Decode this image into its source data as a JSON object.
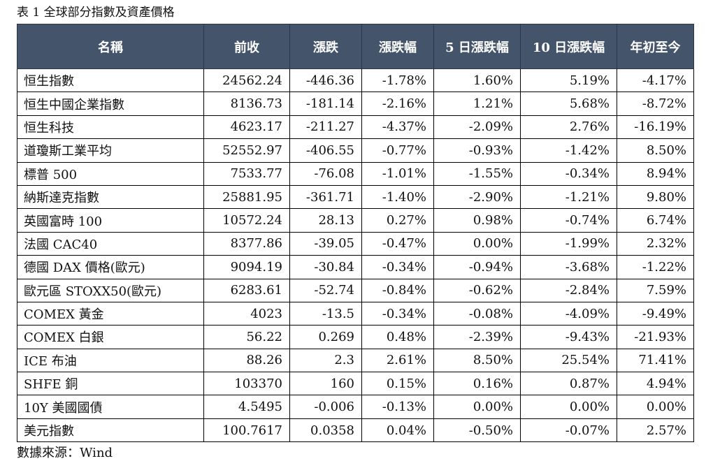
{
  "caption": "表 1 全球部分指數及資產價格",
  "source": "數據來源：Wind",
  "table": {
    "headers": [
      "名稱",
      "前收",
      "漲跌",
      "漲跌幅",
      "5 日漲跌幅",
      "10 日漲跌幅",
      "年初至今"
    ],
    "rows": [
      [
        "恒生指數",
        "24562.24",
        "-446.36",
        "-1.78%",
        "1.60%",
        "5.19%",
        "-4.17%"
      ],
      [
        "恒生中國企業指數",
        "8136.73",
        "-181.14",
        "-2.16%",
        "1.21%",
        "5.68%",
        "-8.72%"
      ],
      [
        "恒生科技",
        "4623.17",
        "-211.27",
        "-4.37%",
        "-2.09%",
        "2.76%",
        "-16.19%"
      ],
      [
        "道瓊斯工業平均",
        "52552.97",
        "-406.55",
        "-0.77%",
        "-0.93%",
        "-1.42%",
        "8.50%"
      ],
      [
        "標普 500",
        "7533.77",
        "-76.08",
        "-1.01%",
        "-1.55%",
        "-0.34%",
        "8.94%"
      ],
      [
        "納斯達克指數",
        "25881.95",
        "-361.71",
        "-1.40%",
        "-2.90%",
        "-1.21%",
        "9.80%"
      ],
      [
        "英國富時 100",
        "10572.24",
        "28.13",
        "0.27%",
        "0.98%",
        "-0.74%",
        "6.74%"
      ],
      [
        "法國 CAC40",
        "8377.86",
        "-39.05",
        "-0.47%",
        "0.00%",
        "-1.99%",
        "2.32%"
      ],
      [
        "德國 DAX 價格(歐元)",
        "9094.19",
        "-30.84",
        "-0.34%",
        "-0.94%",
        "-3.68%",
        "-1.22%"
      ],
      [
        "歐元區 STOXX50(歐元)",
        "6283.61",
        "-52.74",
        "-0.84%",
        "-0.62%",
        "-2.84%",
        "7.59%"
      ],
      [
        "COMEX 黃金",
        "4023",
        "-13.5",
        "-0.34%",
        "-0.08%",
        "-4.09%",
        "-9.49%"
      ],
      [
        "COMEX 白銀",
        "56.22",
        "0.269",
        "0.48%",
        "-2.39%",
        "-9.43%",
        "-21.93%"
      ],
      [
        "ICE 布油",
        "88.26",
        "2.3",
        "2.61%",
        "8.50%",
        "25.54%",
        "71.41%"
      ],
      [
        "SHFE 銅",
        "103370",
        "160",
        "0.15%",
        "0.16%",
        "0.87%",
        "4.94%"
      ],
      [
        "10Y 美國國債",
        "4.5495",
        "-0.006",
        "-0.13%",
        "0.00%",
        "0.00%",
        "0.00%"
      ],
      [
        "美元指數",
        "100.7617",
        "0.0358",
        "0.04%",
        "-0.50%",
        "-0.07%",
        "2.57%"
      ]
    ]
  },
  "colors": {
    "header_background": "#44546a",
    "header_text": "#ffffff",
    "grid_line": "#000000"
  }
}
